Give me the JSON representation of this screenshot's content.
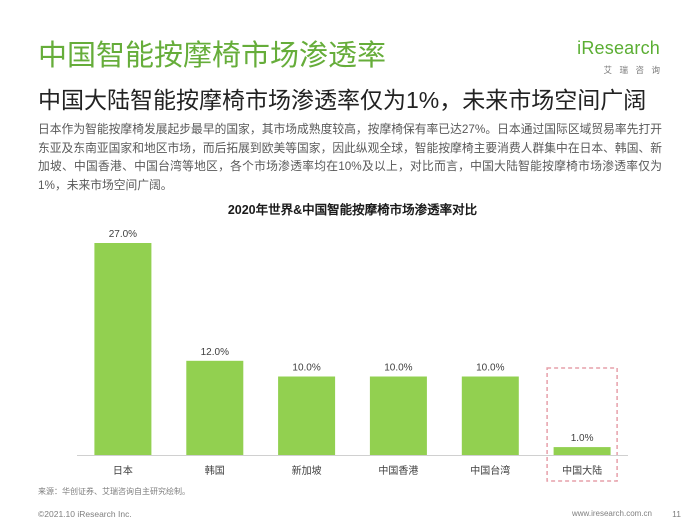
{
  "header": {
    "title": "中国智能按摩椅市场渗透率",
    "subtitle": "中国大陆智能按摩椅市场渗透率仅为1%，未来市场空间广阔"
  },
  "logo": {
    "wordmark": "iResearch",
    "tagline": "艾瑞咨询"
  },
  "body": {
    "paragraph": "日本作为智能按摩椅发展起步最早的国家，其市场成熟度较高，按摩椅保有率已达27%。日本通过国际区域贸易率先打开东亚及东南亚国家和地区市场，而后拓展到欧美等国家，因此纵观全球，智能按摩椅主要消费人群集中在日本、韩国、新加坡、中国香港、中国台湾等地区，各个市场渗透率均在10%及以上，对比而言，中国大陆智能按摩椅市场渗透率仅为1%，未来市场空间广阔。"
  },
  "chart_data": {
    "type": "bar",
    "title": "2020年世界&中国智能按摩椅市场渗透率对比",
    "categories": [
      "日本",
      "韩国",
      "新加坡",
      "中国香港",
      "中国台湾",
      "中国大陆"
    ],
    "values": [
      27.0,
      12.0,
      10.0,
      10.0,
      10.0,
      1.0
    ],
    "value_labels": [
      "27.0%",
      "12.0%",
      "10.0%",
      "10.0%",
      "10.0%",
      "1.0%"
    ],
    "grid": false,
    "show_legend": false,
    "highlighted_category": "中国大陆",
    "colors": {
      "bar": "#92d050",
      "highlight_box": "#e6a0aa",
      "axis": "#d0d0d0",
      "label": "#404040"
    }
  },
  "source": "来源：华创证券、艾瑞咨询自主研究绘制。",
  "footer": {
    "copyright": "©2021.10 iResearch Inc.",
    "website": "www.iresearch.com.cn",
    "page_number": "11"
  },
  "theme": {
    "title_color": "#66ad3a",
    "logo_color": "#5bae33"
  }
}
